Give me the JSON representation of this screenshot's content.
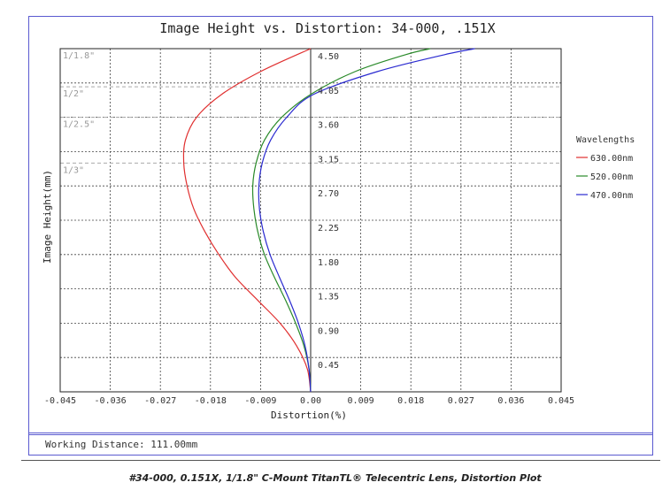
{
  "chart_data": {
    "type": "line",
    "title": "Image Height vs. Distortion: 34-000, .151X",
    "xlabel": "Distortion(%)",
    "ylabel": "Image Height(mm)",
    "xlim": [
      -0.045,
      0.045
    ],
    "ylim": [
      0,
      4.5
    ],
    "x_ticks": [
      "-0.045",
      "-0.036",
      "-0.027",
      "-0.018",
      "-0.009",
      "0.00",
      "0.009",
      "0.018",
      "0.027",
      "0.036",
      "0.045"
    ],
    "x_tick_values": [
      -0.045,
      -0.036,
      -0.027,
      -0.018,
      -0.009,
      0.0,
      0.009,
      0.018,
      0.027,
      0.036,
      0.045
    ],
    "y_ticks": [
      "0.45",
      "0.90",
      "1.35",
      "1.80",
      "2.25",
      "2.70",
      "3.15",
      "3.60",
      "4.05",
      "4.50"
    ],
    "y_tick_values": [
      0.45,
      0.9,
      1.35,
      1.8,
      2.25,
      2.7,
      3.15,
      3.6,
      4.05,
      4.5
    ],
    "grid": true,
    "legend_title": "Wavelengths",
    "legend_position": "right",
    "sensor_lines": [
      {
        "label": "1/1.8\"",
        "y": 4.5
      },
      {
        "label": "1/2\"",
        "y": 4.0
      },
      {
        "label": "1/2.5\"",
        "y": 3.6
      },
      {
        "label": "1/3\"",
        "y": 3.0
      }
    ],
    "series": [
      {
        "name": "630.00nm",
        "color": "#e03030",
        "points": [
          [
            0,
            0
          ],
          [
            -0.0006,
            0.3
          ],
          [
            -0.0025,
            0.6
          ],
          [
            -0.0055,
            0.9
          ],
          [
            -0.0095,
            1.2
          ],
          [
            -0.0135,
            1.5
          ],
          [
            -0.0165,
            1.8
          ],
          [
            -0.019,
            2.1
          ],
          [
            -0.021,
            2.4
          ],
          [
            -0.0222,
            2.7
          ],
          [
            -0.0228,
            3.0
          ],
          [
            -0.0225,
            3.3
          ],
          [
            -0.0205,
            3.6
          ],
          [
            -0.016,
            3.9
          ],
          [
            -0.009,
            4.2
          ],
          [
            0.0,
            4.5
          ]
        ]
      },
      {
        "name": "520.00nm",
        "color": "#2a8a2a",
        "points": [
          [
            0,
            0
          ],
          [
            -0.0003,
            0.3
          ],
          [
            -0.0012,
            0.6
          ],
          [
            -0.0027,
            0.9
          ],
          [
            -0.0045,
            1.2
          ],
          [
            -0.0065,
            1.5
          ],
          [
            -0.0083,
            1.8
          ],
          [
            -0.0095,
            2.1
          ],
          [
            -0.0102,
            2.4
          ],
          [
            -0.0104,
            2.7
          ],
          [
            -0.0098,
            3.0
          ],
          [
            -0.0083,
            3.3
          ],
          [
            -0.0052,
            3.6
          ],
          [
            0.0,
            3.9
          ],
          [
            0.008,
            4.2
          ],
          [
            0.017,
            4.42
          ],
          [
            0.0215,
            4.5
          ]
        ]
      },
      {
        "name": "470.00nm",
        "color": "#2a2ad0",
        "points": [
          [
            0,
            0
          ],
          [
            -0.0003,
            0.3
          ],
          [
            -0.001,
            0.6
          ],
          [
            -0.0022,
            0.9
          ],
          [
            -0.0038,
            1.2
          ],
          [
            -0.0056,
            1.5
          ],
          [
            -0.0073,
            1.8
          ],
          [
            -0.0085,
            2.1
          ],
          [
            -0.0092,
            2.4
          ],
          [
            -0.0093,
            2.7
          ],
          [
            -0.0087,
            3.0
          ],
          [
            -0.0072,
            3.3
          ],
          [
            -0.0043,
            3.6
          ],
          [
            0.0005,
            3.9
          ],
          [
            0.012,
            4.2
          ],
          [
            0.024,
            4.42
          ],
          [
            0.0295,
            4.5
          ]
        ]
      }
    ]
  },
  "footer": {
    "working_distance": "Working Distance: 111.00mm"
  },
  "caption": "#34-000, 0.151X, 1/1.8\" C-Mount TitanTL® Telecentric Lens, Distortion Plot"
}
